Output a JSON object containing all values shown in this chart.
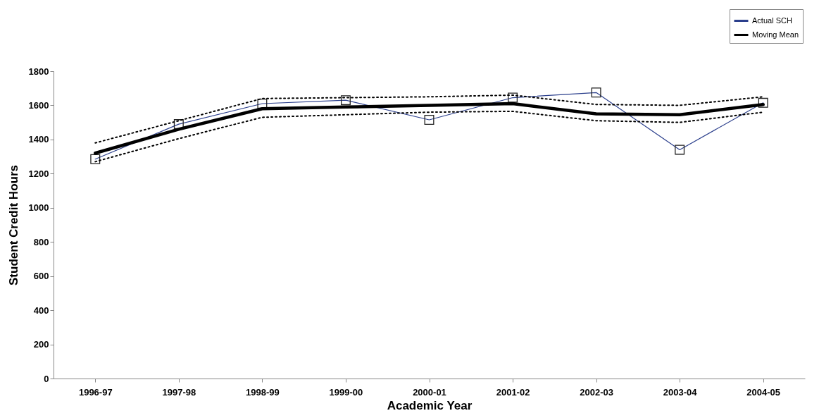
{
  "chart_data": {
    "type": "line",
    "xlabel": "Academic Year",
    "ylabel": "Student Credit Hours",
    "categories": [
      "1996-97",
      "1997-98",
      "1998-99",
      "1999-00",
      "2000-01",
      "2001-02",
      "2002-03",
      "2003-04",
      "2004-05"
    ],
    "series": [
      {
        "name": "Actual SCH",
        "color": "#2b3f8c",
        "marker": "square",
        "line_style": "solid",
        "values": [
          1285,
          1490,
          1610,
          1630,
          1515,
          1645,
          1675,
          1340,
          1615
        ]
      },
      {
        "name": "Moving Mean",
        "color": "#000000",
        "marker": "none",
        "line_style": "solid",
        "values": [
          1320,
          1460,
          1580,
          1590,
          1600,
          1610,
          1550,
          1545,
          1605
        ]
      },
      {
        "color": "#000000",
        "marker": "none",
        "line_style": "dotted",
        "values": [
          1380,
          1510,
          1640,
          1645,
          1650,
          1660,
          1605,
          1600,
          1650
        ]
      },
      {
        "color": "#000000",
        "marker": "none",
        "line_style": "dotted",
        "values": [
          1270,
          1405,
          1530,
          1545,
          1560,
          1565,
          1510,
          1500,
          1560
        ]
      }
    ],
    "ylim": [
      0,
      1800
    ],
    "yticks": [
      0,
      200,
      400,
      600,
      800,
      1000,
      1200,
      1400,
      1600,
      1800
    ],
    "grid": false,
    "legend": "top right"
  }
}
